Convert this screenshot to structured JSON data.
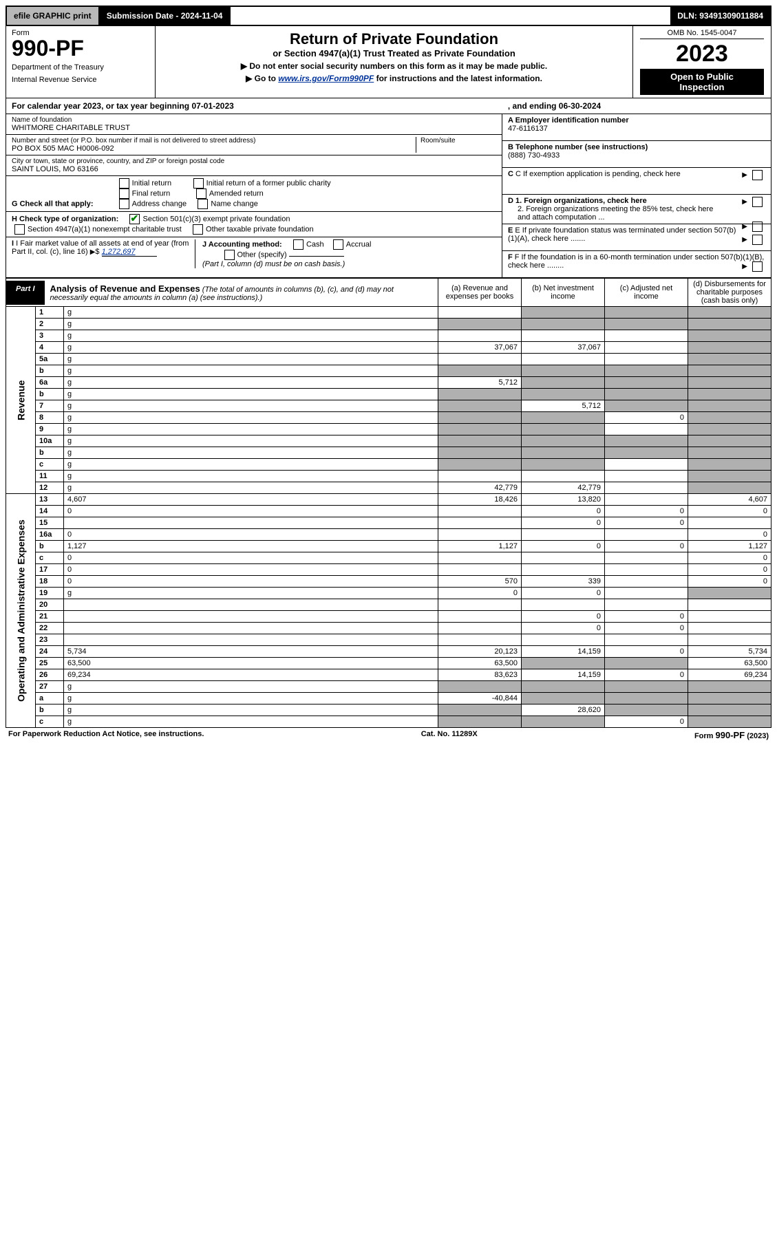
{
  "topbar": {
    "efile": "efile GRAPHIC print",
    "subdate_label": "Submission Date - 2024-11-04",
    "dln": "DLN: 93491309011884"
  },
  "header": {
    "form_label": "Form",
    "form_num": "990-PF",
    "dept": "Department of the Treasury",
    "irs": "Internal Revenue Service",
    "title": "Return of Private Foundation",
    "subtitle": "or Section 4947(a)(1) Trust Treated as Private Foundation",
    "note1_a": "▶ Do not enter social security numbers on this form as it may be made public.",
    "note2_a": "▶ Go to ",
    "note2_link": "www.irs.gov/Form990PF",
    "note2_b": " for instructions and the latest information.",
    "omb": "OMB No. 1545-0047",
    "year": "2023",
    "open1": "Open to Public",
    "open2": "Inspection"
  },
  "calyear": {
    "a": "For calendar year 2023, or tax year beginning 07-01-2023",
    "b": ", and ending 06-30-2024"
  },
  "info": {
    "name_lbl": "Name of foundation",
    "name_val": "WHITMORE CHARITABLE TRUST",
    "addr_lbl": "Number and street (or P.O. box number if mail is not delivered to street address)",
    "addr_val": "PO BOX 505 MAC H0006-092",
    "room_lbl": "Room/suite",
    "city_lbl": "City or town, state or province, country, and ZIP or foreign postal code",
    "city_val": "SAINT LOUIS, MO  63166",
    "g_lbl": "G Check all that apply:",
    "g_opts": [
      "Initial return",
      "Final return",
      "Address change",
      "Initial return of a former public charity",
      "Amended return",
      "Name change"
    ],
    "h_lbl": "H Check type of organization:",
    "h_opt1": "Section 501(c)(3) exempt private foundation",
    "h_opt2": "Section 4947(a)(1) nonexempt charitable trust",
    "h_opt3": "Other taxable private foundation",
    "i_lbl": "I Fair market value of all assets at end of year (from Part II, col. (c), line 16)",
    "i_val": "1,272,697",
    "j_lbl": "J Accounting method:",
    "j_cash": "Cash",
    "j_accrual": "Accrual",
    "j_other": "Other (specify)",
    "j_note": "(Part I, column (d) must be on cash basis.)",
    "a_lbl": "A Employer identification number",
    "a_val": "47-6116137",
    "b_lbl": "B Telephone number (see instructions)",
    "b_val": "(888) 730-4933",
    "c_lbl": "C If exemption application is pending, check here",
    "d1_lbl": "D 1. Foreign organizations, check here",
    "d2_lbl": "2. Foreign organizations meeting the 85% test, check here and attach computation ...",
    "e_lbl": "E If private foundation status was terminated under section 507(b)(1)(A), check here .......",
    "f_lbl": "F If the foundation is in a 60-month termination under section 507(b)(1)(B), check here ........"
  },
  "part1": {
    "tag": "Part I",
    "title": "Analysis of Revenue and Expenses",
    "note": "(The total of amounts in columns (b), (c), and (d) may not necessarily equal the amounts in column (a) (see instructions).)",
    "cols": {
      "a": "(a) Revenue and expenses per books",
      "b": "(b) Net investment income",
      "c": "(c) Adjusted net income",
      "d": "(d) Disbursements for charitable purposes (cash basis only)"
    }
  },
  "sides": {
    "rev": "Revenue",
    "exp": "Operating and Administrative Expenses"
  },
  "rows": [
    {
      "n": "1",
      "d": "g",
      "a": "",
      "b": "g",
      "c": "g"
    },
    {
      "n": "2",
      "d": "g",
      "a": "g",
      "b": "g",
      "c": "g"
    },
    {
      "n": "3",
      "d": "g",
      "a": "",
      "b": "",
      "c": ""
    },
    {
      "n": "4",
      "d": "g",
      "a": "37,067",
      "b": "37,067",
      "c": ""
    },
    {
      "n": "5a",
      "d": "g",
      "a": "",
      "b": "",
      "c": ""
    },
    {
      "n": "b",
      "d": "g",
      "a": "g",
      "b": "g",
      "c": "g"
    },
    {
      "n": "6a",
      "d": "g",
      "a": "5,712",
      "b": "g",
      "c": "g"
    },
    {
      "n": "b",
      "d": "g",
      "a": "g",
      "b": "g",
      "c": "g"
    },
    {
      "n": "7",
      "d": "g",
      "a": "g",
      "b": "5,712",
      "c": "g"
    },
    {
      "n": "8",
      "d": "g",
      "a": "g",
      "b": "g",
      "c": "0"
    },
    {
      "n": "9",
      "d": "g",
      "a": "g",
      "b": "g",
      "c": ""
    },
    {
      "n": "10a",
      "d": "g",
      "a": "g",
      "b": "g",
      "c": "g"
    },
    {
      "n": "b",
      "d": "g",
      "a": "g",
      "b": "g",
      "c": "g"
    },
    {
      "n": "c",
      "d": "g",
      "a": "g",
      "b": "g",
      "c": ""
    },
    {
      "n": "11",
      "d": "g",
      "a": "",
      "b": "",
      "c": ""
    },
    {
      "n": "12",
      "d": "g",
      "a": "42,779",
      "b": "42,779",
      "c": ""
    }
  ],
  "rows2": [
    {
      "n": "13",
      "d": "4,607",
      "a": "18,426",
      "b": "13,820",
      "c": ""
    },
    {
      "n": "14",
      "d": "0",
      "a": "",
      "b": "0",
      "c": "0"
    },
    {
      "n": "15",
      "d": "",
      "a": "",
      "b": "0",
      "c": "0"
    },
    {
      "n": "16a",
      "d": "0",
      "a": "",
      "b": "",
      "c": ""
    },
    {
      "n": "b",
      "d": "1,127",
      "a": "1,127",
      "b": "0",
      "c": "0"
    },
    {
      "n": "c",
      "d": "0",
      "a": "",
      "b": "",
      "c": ""
    },
    {
      "n": "17",
      "d": "0",
      "a": "",
      "b": "",
      "c": ""
    },
    {
      "n": "18",
      "d": "0",
      "a": "570",
      "b": "339",
      "c": ""
    },
    {
      "n": "19",
      "d": "g",
      "a": "0",
      "b": "0",
      "c": ""
    },
    {
      "n": "20",
      "d": "",
      "a": "",
      "b": "",
      "c": ""
    },
    {
      "n": "21",
      "d": "",
      "a": "",
      "b": "0",
      "c": "0"
    },
    {
      "n": "22",
      "d": "",
      "a": "",
      "b": "0",
      "c": "0"
    },
    {
      "n": "23",
      "d": "",
      "a": "",
      "b": "",
      "c": ""
    },
    {
      "n": "24",
      "d": "5,734",
      "a": "20,123",
      "b": "14,159",
      "c": "0"
    },
    {
      "n": "25",
      "d": "63,500",
      "a": "63,500",
      "b": "g",
      "c": "g"
    },
    {
      "n": "26",
      "d": "69,234",
      "a": "83,623",
      "b": "14,159",
      "c": "0"
    }
  ],
  "rows3": [
    {
      "n": "27",
      "d": "g",
      "a": "g",
      "b": "g",
      "c": "g"
    },
    {
      "n": "a",
      "d": "g",
      "a": "-40,844",
      "b": "g",
      "c": "g"
    },
    {
      "n": "b",
      "d": "g",
      "a": "g",
      "b": "28,620",
      "c": "g"
    },
    {
      "n": "c",
      "d": "g",
      "a": "g",
      "b": "g",
      "c": "0"
    }
  ],
  "footer": {
    "left": "For Paperwork Reduction Act Notice, see instructions.",
    "mid": "Cat. No. 11289X",
    "right": "Form 990-PF (2023)"
  },
  "colors": {
    "grey": "#b0b0b0",
    "link": "#003399",
    "check": "#008000"
  }
}
